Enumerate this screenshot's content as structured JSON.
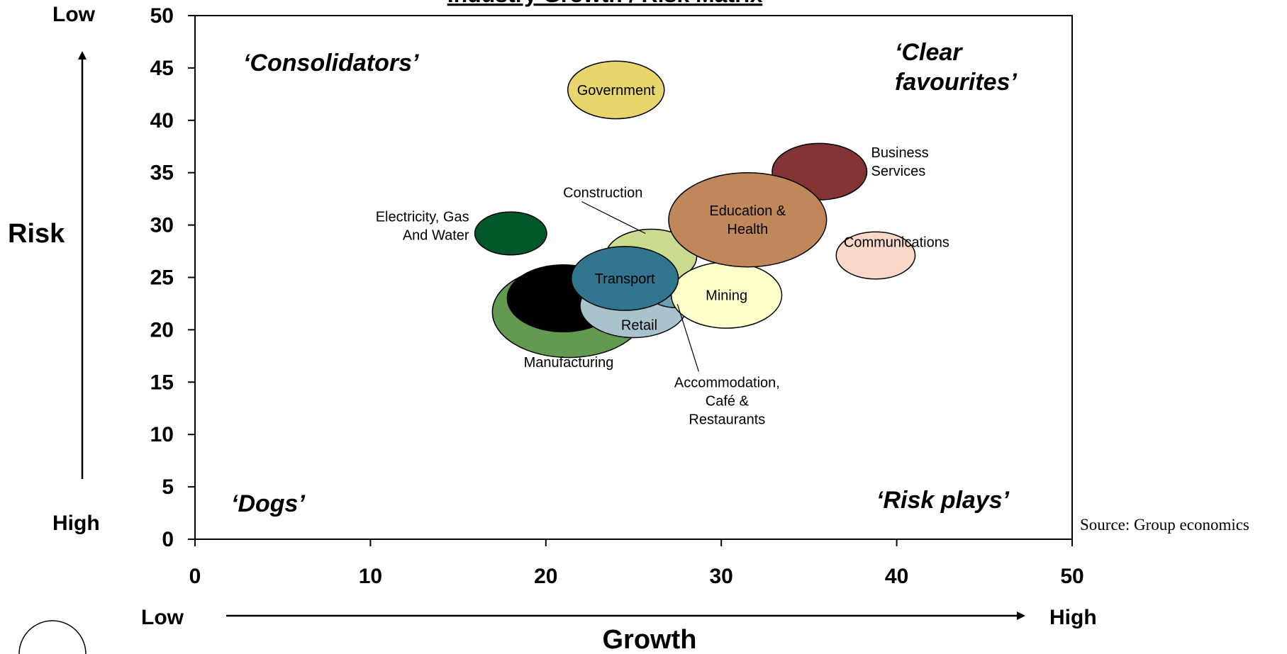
{
  "chart_data": {
    "type": "bubble",
    "title": "Industry Growth / Risk Matrix",
    "xlabel": "Growth",
    "ylabel": "Risk",
    "x_range_labels": {
      "low": "Low",
      "high": "High"
    },
    "y_range_labels": {
      "top": "Low",
      "bottom": "High"
    },
    "xlim": [
      0,
      50
    ],
    "ylim": [
      0,
      50
    ],
    "xticks": [
      0,
      10,
      20,
      30,
      40,
      50
    ],
    "yticks": [
      0,
      5,
      10,
      15,
      20,
      25,
      30,
      35,
      40,
      45,
      50
    ],
    "grid": false,
    "quadrant_labels": {
      "top_left": "‘Consolidators’",
      "top_right_line1": "‘Clear",
      "top_right_line2": "favourites’",
      "bottom_left": "‘Dogs’",
      "bottom_right": "‘Risk plays’"
    },
    "source": "Source: Group economics",
    "series": [
      {
        "name": "Manufacturing",
        "label_lines": [
          "Manufacturing"
        ],
        "x": 21.3,
        "y": 21.7,
        "size": 4.35,
        "color": "#629A50"
      },
      {
        "name": "Manufacturing (inner)",
        "label_lines": [],
        "x": 21.0,
        "y": 23.0,
        "size": 3.2,
        "color": "#000000"
      },
      {
        "name": "Retail",
        "label_lines": [
          "Retail"
        ],
        "x": 25.0,
        "y": 22.3,
        "size": 3.05,
        "color": "#A8C3CB"
      },
      {
        "name": "Accommodation, Café & Restaurants",
        "label_lines": [
          "Accommodation,",
          "Café &",
          "Restaurants"
        ],
        "x": 27.5,
        "y": 24.0,
        "size": 1.9,
        "color": "#6FA0AF"
      },
      {
        "name": "Construction",
        "label_lines": [
          "Construction"
        ],
        "x": 26.0,
        "y": 27.0,
        "size": 2.6,
        "color": "#C9DC8F"
      },
      {
        "name": "Mining",
        "label_lines": [
          "Mining"
        ],
        "x": 30.3,
        "y": 23.3,
        "size": 3.15,
        "color": "#FFFFCC"
      },
      {
        "name": "Transport",
        "label_lines": [
          "Transport"
        ],
        "x": 24.5,
        "y": 24.9,
        "size": 3.05,
        "color": "#31758E"
      },
      {
        "name": "Electricity, Gas And Water",
        "label_lines": [
          "Electricity, Gas",
          "And Water"
        ],
        "x": 18.0,
        "y": 29.2,
        "size": 2.05,
        "color": "#00582A"
      },
      {
        "name": "Government",
        "label_lines": [
          "Government"
        ],
        "x": 24.0,
        "y": 42.9,
        "size": 2.75,
        "color": "#E8D56B"
      },
      {
        "name": "Business Services",
        "label_lines": [
          "Business",
          "Services"
        ],
        "x": 35.6,
        "y": 35.1,
        "size": 2.7,
        "color": "#833333"
      },
      {
        "name": "Education & Health",
        "label_lines": [
          "Education &",
          "Health"
        ],
        "x": 31.5,
        "y": 30.5,
        "size": 4.5,
        "color": "#C0885A"
      },
      {
        "name": "Communications",
        "label_lines": [
          "Communications"
        ],
        "x": 38.8,
        "y": 27.1,
        "size": 2.25,
        "color": "#F9D8C8"
      }
    ]
  }
}
